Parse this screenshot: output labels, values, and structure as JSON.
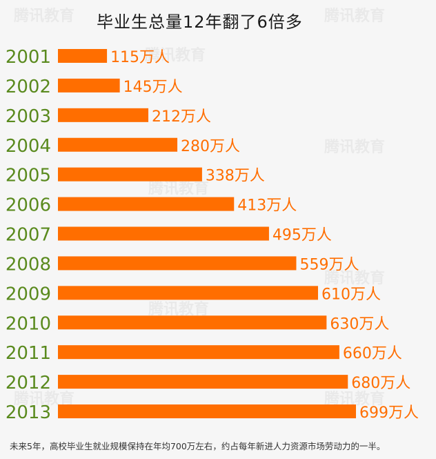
{
  "title": "毕业生总量12年翻了6倍多",
  "footnote": "未来5年，高校毕业生就业规模保持在年均700万左右，约占每年新进人力资源市场劳动力的一半。",
  "watermark": "腾讯教育",
  "colors": {
    "bar": "#ff6e00",
    "year_label": "#5a8a1e",
    "value_label": "#ff6e00",
    "background": "#f6f6f6"
  },
  "chart_data": {
    "type": "bar",
    "orientation": "horizontal",
    "title": "毕业生总量12年翻了6倍多",
    "categories": [
      "2001",
      "2002",
      "2003",
      "2004",
      "2005",
      "2006",
      "2007",
      "2008",
      "2009",
      "2010",
      "2011",
      "2012",
      "2013"
    ],
    "values": [
      115,
      145,
      212,
      280,
      338,
      413,
      495,
      559,
      610,
      630,
      660,
      680,
      699
    ],
    "unit": "万人",
    "value_labels": [
      "115万人",
      "145万人",
      "212万人",
      "280万人",
      "338万人",
      "413万人",
      "495万人",
      "559万人",
      "610万人",
      "630万人",
      "660万人",
      "680万人",
      "699万人"
    ]
  }
}
